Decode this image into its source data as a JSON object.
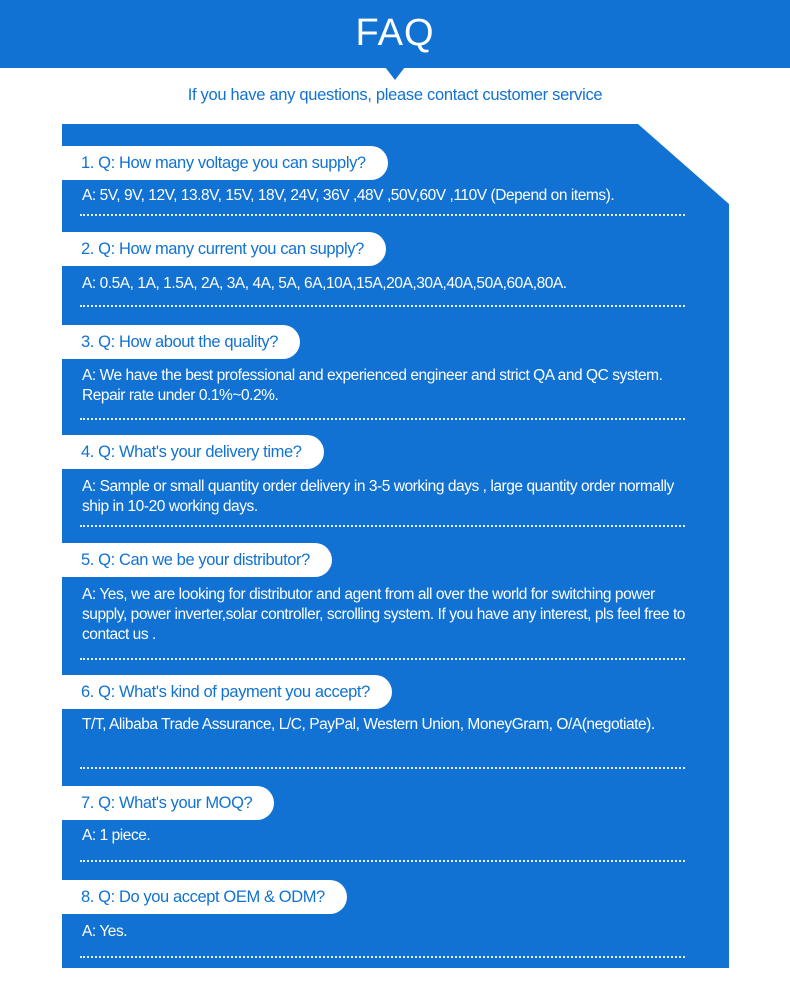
{
  "header": {
    "title": "FAQ"
  },
  "subtitle": "If you have any questions, please contact customer service",
  "colors": {
    "brand": "#1172d3",
    "text_on_brand": "#ffffff"
  },
  "faq": [
    {
      "q": "1. Q: How many voltage you can supply?",
      "a": "A:  5V, 9V, 12V, 13.8V, 15V, 18V, 24V, 36V ,48V ,50V,60V ,110V (Depend on items)."
    },
    {
      "q": "2. Q: How many current you can supply?",
      "a": "A:  0.5A, 1A, 1.5A, 2A, 3A, 4A, 5A, 6A,10A,15A,20A,30A,40A,50A,60A,80A."
    },
    {
      "q": "3. Q: How about the quality?",
      "a": "A:  We have the best professional and experienced engineer and strict QA and QC system. Repair rate under 0.1%~0.2%."
    },
    {
      "q": "4. Q: What's your delivery time?",
      "a": "A:  Sample or small quantity order delivery in 3-5 working days , large quantity order normally ship in 10-20 working days."
    },
    {
      "q": "5. Q: Can we be your distributor?",
      "a": "A:  Yes, we are looking for distributor and agent from all over the world for switching power supply, power inverter,solar controller, scrolling system. If you have any interest, pls feel free to contact us ."
    },
    {
      "q": "6. Q: What's kind of payment you accept?",
      "a": "T/T, Alibaba Trade Assurance, L/C, PayPal, Western Union, MoneyGram, O/A(negotiate)."
    },
    {
      "q": "7. Q: What's your MOQ?",
      "a": "A:  1 piece."
    },
    {
      "q": "8. Q: Do you accept OEM & ODM?",
      "a": "A:  Yes."
    }
  ]
}
